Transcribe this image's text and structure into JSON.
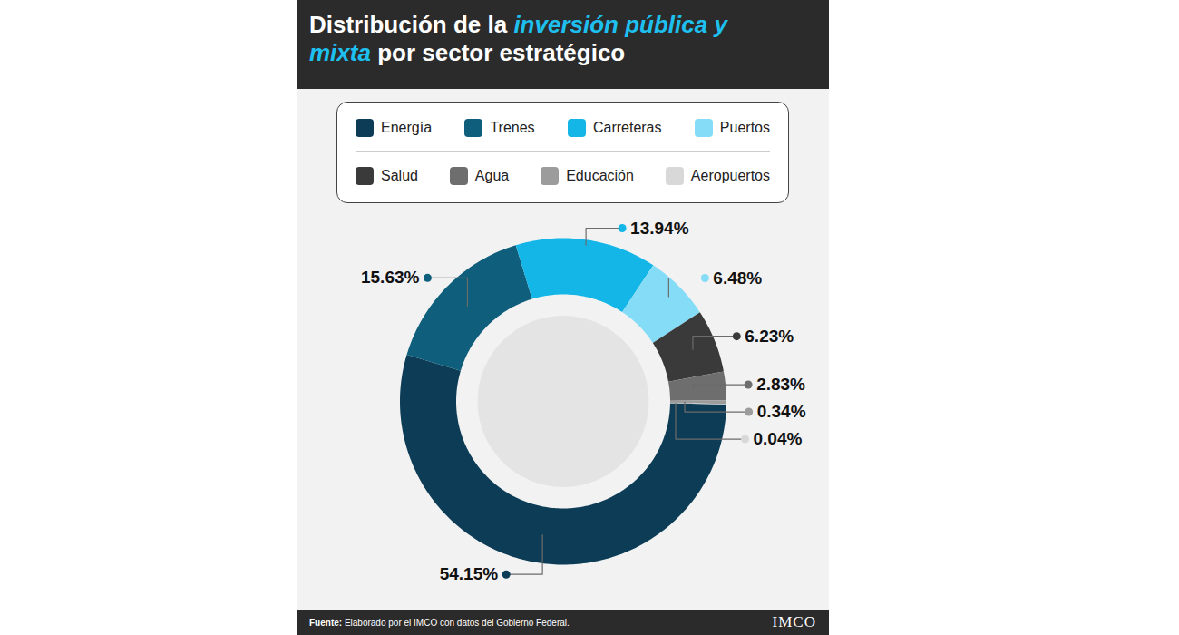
{
  "chart_data": {
    "type": "donut",
    "title": "Distribución de la inversión pública y mixta por sector estratégico",
    "title_emphasis": [
      "inversión pública",
      "y mixta"
    ],
    "categories": [
      "Energía",
      "Trenes",
      "Carreteras",
      "Puertos",
      "Salud",
      "Agua",
      "Educación",
      "Aeropuertos"
    ],
    "values": [
      54.15,
      15.63,
      13.94,
      6.48,
      6.23,
      2.83,
      0.34,
      0.04
    ],
    "value_labels": [
      "54.15%",
      "15.63%",
      "13.94%",
      "6.48%",
      "6.23%",
      "2.83%",
      "0.34%",
      "0.04%"
    ],
    "colors": [
      "#0d3d56",
      "#0f5f7c",
      "#14b6e8",
      "#85dcf7",
      "#3a3a3a",
      "#6e6e6e",
      "#9c9c9c",
      "#d8d8d8"
    ],
    "data_labels": true,
    "legend": "top",
    "source": "Fuente: Elaborado por el IMCO con datos del Gobierno Federal.",
    "logo": "IMCO"
  }
}
